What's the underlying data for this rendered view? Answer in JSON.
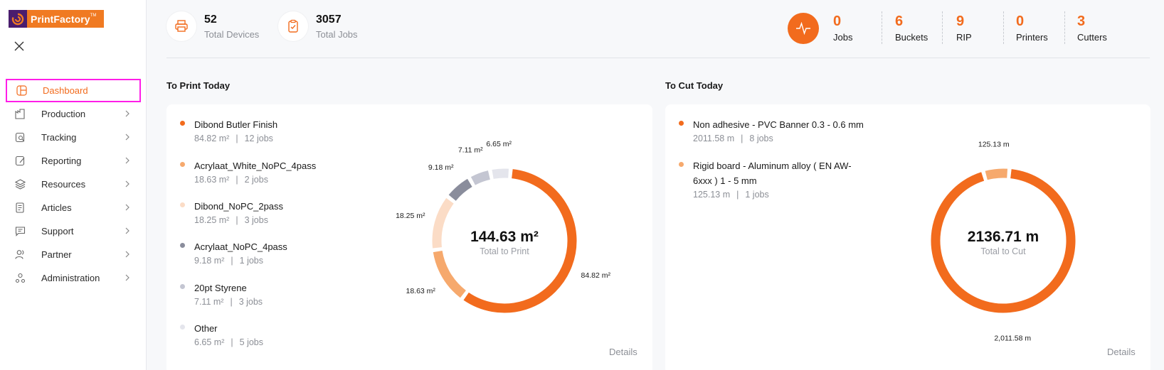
{
  "brand": {
    "name": "PrintFactory",
    "trademark": "TM"
  },
  "sidebar": {
    "items": [
      {
        "label": "Dashboard",
        "icon": "dashboard-icon",
        "active": true
      },
      {
        "label": "Production",
        "icon": "production-icon"
      },
      {
        "label": "Tracking",
        "icon": "tracking-icon"
      },
      {
        "label": "Reporting",
        "icon": "reporting-icon"
      },
      {
        "label": "Resources",
        "icon": "resources-icon"
      },
      {
        "label": "Articles",
        "icon": "articles-icon"
      },
      {
        "label": "Support",
        "icon": "support-icon"
      },
      {
        "label": "Partner",
        "icon": "partner-icon"
      },
      {
        "label": "Administration",
        "icon": "administration-icon"
      }
    ]
  },
  "stats": {
    "devices": {
      "value": "52",
      "label": "Total Devices"
    },
    "jobs": {
      "value": "3057",
      "label": "Total Jobs"
    }
  },
  "counters": [
    {
      "value": "0",
      "label": "Jobs"
    },
    {
      "value": "6",
      "label": "Buckets"
    },
    {
      "value": "9",
      "label": "RIP"
    },
    {
      "value": "0",
      "label": "Printers"
    },
    {
      "value": "3",
      "label": "Cutters"
    }
  ],
  "print_today": {
    "title": "To Print Today",
    "total": "144.63 m²",
    "total_label": "Total to Print",
    "details": "Details",
    "items": [
      {
        "name": "Dibond Butler Finish",
        "area": "84.82 m²",
        "jobs": "12 jobs",
        "color": "#f26b1d"
      },
      {
        "name": "Acrylaat_White_NoPC_4pass",
        "area": "18.63 m²",
        "jobs": "2 jobs",
        "color": "#f6a96d"
      },
      {
        "name": "Dibond_NoPC_2pass",
        "area": "18.25 m²",
        "jobs": "3 jobs",
        "color": "#fbdcc6"
      },
      {
        "name": "Acrylaat_NoPC_4pass",
        "area": "9.18 m²",
        "jobs": "1 jobs",
        "color": "#8a8d9c"
      },
      {
        "name": "20pt Styrene",
        "area": "7.11 m²",
        "jobs": "3 jobs",
        "color": "#c4c6d2"
      },
      {
        "name": "Other",
        "area": "6.65 m²",
        "jobs": "5 jobs",
        "color": "#e4e5ec"
      }
    ]
  },
  "cut_today": {
    "title": "To Cut Today",
    "total": "2136.71 m",
    "total_label": "Total to Cut",
    "details": "Details",
    "items": [
      {
        "name": "Non adhesive - PVC Banner 0.3 - 0.6 mm",
        "length": "2011.58 m",
        "jobs": "8 jobs",
        "color": "#f26b1d",
        "chart_label": "2,011.58 m"
      },
      {
        "name": "Rigid board - Aluminum alloy ( EN AW-6xxx ) 1 - 5 mm",
        "length": "125.13 m",
        "jobs": "1 jobs",
        "color": "#f6a96d",
        "chart_label": "125.13 m"
      }
    ]
  },
  "chart_data": [
    {
      "type": "pie",
      "title": "To Print Today",
      "categories": [
        "Dibond Butler Finish",
        "Acrylaat_White_NoPC_4pass",
        "Dibond_NoPC_2pass",
        "Acrylaat_NoPC_4pass",
        "20pt Styrene",
        "Other"
      ],
      "values": [
        84.82,
        18.63,
        18.25,
        9.18,
        7.11,
        6.65
      ],
      "labels": [
        "84.82 m²",
        "18.63 m²",
        "18.25 m²",
        "9.18 m²",
        "7.11 m²",
        "6.65 m²"
      ],
      "colors": [
        "#f26b1d",
        "#f6a96d",
        "#fbdcc6",
        "#8a8d9c",
        "#c4c6d2",
        "#e4e5ec"
      ]
    },
    {
      "type": "pie",
      "title": "To Cut Today",
      "categories": [
        "Non adhesive - PVC Banner 0.3 - 0.6 mm",
        "Rigid board - Aluminum alloy ( EN AW-6xxx ) 1 - 5 mm"
      ],
      "values": [
        2011.58,
        125.13
      ],
      "labels": [
        "2,011.58 m",
        "125.13 m"
      ],
      "colors": [
        "#f26b1d",
        "#f6a96d"
      ]
    }
  ]
}
